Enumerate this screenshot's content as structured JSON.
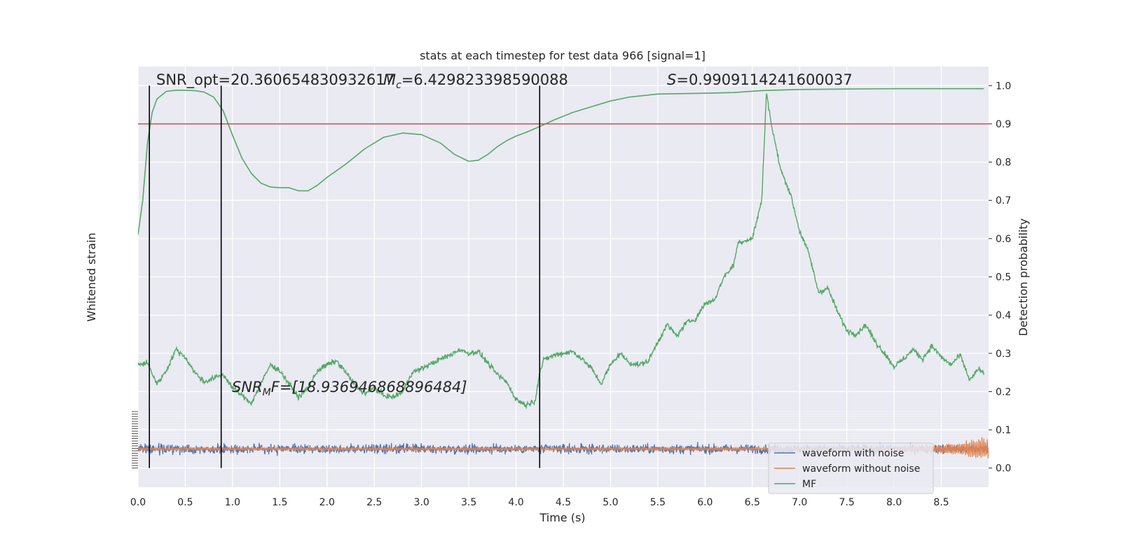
{
  "chart_data": {
    "type": "line",
    "title": "stats at each timestep for test data 966 [signal=1]",
    "xlabel": "Time (s)",
    "ylabel_left": "Whitened strain",
    "ylabel_right": "Detection probability",
    "xlim": [
      0.0,
      9.0
    ],
    "ylim_right": [
      -0.05,
      1.05
    ],
    "x_ticks": [
      "0.0",
      "0.5",
      "1.0",
      "1.5",
      "2.0",
      "2.5",
      "3.0",
      "3.5",
      "4.0",
      "4.5",
      "5.0",
      "5.5",
      "6.0",
      "6.5",
      "7.0",
      "7.5",
      "8.0",
      "8.5"
    ],
    "y_ticks_right": [
      "0.0",
      "0.1",
      "0.2",
      "0.3",
      "0.4",
      "0.5",
      "0.6",
      "0.7",
      "0.8",
      "0.9",
      "1.0"
    ],
    "threshold": 0.9,
    "vertical_lines": [
      0.12,
      0.88,
      4.25
    ],
    "annotations": {
      "snr_opt": "SNR_opt=20.360654830932617",
      "mc": "M",
      "mc_sub": "c",
      "mc_value": "=6.429823398590088",
      "s": "S",
      "s_value": "=0.9909114241600037",
      "snr_mf": "SNR",
      "snr_mf_sub": "M",
      "snr_mf_value": "F=[18.936946868896484]"
    },
    "legend": [
      "waveform with noise",
      "waveform without noise",
      "MF"
    ],
    "colors": {
      "noise": "#4c72b0",
      "clean": "#dd8452",
      "mf": "#55a868",
      "threshold": "#c44e52",
      "vline": "#000000",
      "plot_bg": "#eaeaf2",
      "grid": "#ffffff"
    },
    "series": [
      {
        "name": "Detection probability",
        "points": [
          [
            0.0,
            0.61
          ],
          [
            0.05,
            0.7
          ],
          [
            0.1,
            0.85
          ],
          [
            0.15,
            0.93
          ],
          [
            0.2,
            0.965
          ],
          [
            0.3,
            0.985
          ],
          [
            0.4,
            0.988
          ],
          [
            0.5,
            0.988
          ],
          [
            0.6,
            0.987
          ],
          [
            0.7,
            0.983
          ],
          [
            0.8,
            0.97
          ],
          [
            0.9,
            0.935
          ],
          [
            1.0,
            0.87
          ],
          [
            1.1,
            0.81
          ],
          [
            1.2,
            0.77
          ],
          [
            1.3,
            0.745
          ],
          [
            1.4,
            0.735
          ],
          [
            1.5,
            0.733
          ],
          [
            1.6,
            0.733
          ],
          [
            1.7,
            0.725
          ],
          [
            1.8,
            0.725
          ],
          [
            1.9,
            0.74
          ],
          [
            2.0,
            0.76
          ],
          [
            2.2,
            0.795
          ],
          [
            2.4,
            0.835
          ],
          [
            2.6,
            0.865
          ],
          [
            2.8,
            0.876
          ],
          [
            3.0,
            0.872
          ],
          [
            3.2,
            0.85
          ],
          [
            3.35,
            0.82
          ],
          [
            3.5,
            0.802
          ],
          [
            3.6,
            0.805
          ],
          [
            3.7,
            0.82
          ],
          [
            3.8,
            0.84
          ],
          [
            3.9,
            0.856
          ],
          [
            4.0,
            0.868
          ],
          [
            4.1,
            0.877
          ],
          [
            4.25,
            0.893
          ],
          [
            4.4,
            0.91
          ],
          [
            4.6,
            0.93
          ],
          [
            4.8,
            0.945
          ],
          [
            5.0,
            0.96
          ],
          [
            5.2,
            0.97
          ],
          [
            5.5,
            0.978
          ],
          [
            6.0,
            0.98
          ],
          [
            6.3,
            0.982
          ],
          [
            6.6,
            0.987
          ],
          [
            7.0,
            0.99
          ],
          [
            7.5,
            0.991
          ],
          [
            8.0,
            0.992
          ],
          [
            8.5,
            0.992
          ],
          [
            8.95,
            0.992
          ]
        ]
      },
      {
        "name": "MF",
        "points": [
          [
            0.0,
            0.27
          ],
          [
            0.1,
            0.275
          ],
          [
            0.2,
            0.22
          ],
          [
            0.3,
            0.255
          ],
          [
            0.4,
            0.31
          ],
          [
            0.5,
            0.29
          ],
          [
            0.6,
            0.25
          ],
          [
            0.7,
            0.225
          ],
          [
            0.8,
            0.235
          ],
          [
            0.9,
            0.245
          ],
          [
            1.0,
            0.21
          ],
          [
            1.1,
            0.19
          ],
          [
            1.2,
            0.17
          ],
          [
            1.3,
            0.22
          ],
          [
            1.4,
            0.27
          ],
          [
            1.5,
            0.255
          ],
          [
            1.6,
            0.22
          ],
          [
            1.7,
            0.185
          ],
          [
            1.8,
            0.21
          ],
          [
            1.9,
            0.255
          ],
          [
            2.0,
            0.27
          ],
          [
            2.1,
            0.28
          ],
          [
            2.2,
            0.25
          ],
          [
            2.3,
            0.215
          ],
          [
            2.4,
            0.195
          ],
          [
            2.5,
            0.21
          ],
          [
            2.6,
            0.19
          ],
          [
            2.7,
            0.185
          ],
          [
            2.8,
            0.2
          ],
          [
            2.9,
            0.25
          ],
          [
            3.0,
            0.26
          ],
          [
            3.2,
            0.285
          ],
          [
            3.3,
            0.295
          ],
          [
            3.4,
            0.31
          ],
          [
            3.5,
            0.3
          ],
          [
            3.6,
            0.305
          ],
          [
            3.7,
            0.275
          ],
          [
            3.8,
            0.245
          ],
          [
            3.9,
            0.225
          ],
          [
            4.0,
            0.18
          ],
          [
            4.1,
            0.165
          ],
          [
            4.2,
            0.175
          ],
          [
            4.25,
            0.25
          ],
          [
            4.3,
            0.285
          ],
          [
            4.4,
            0.295
          ],
          [
            4.5,
            0.3
          ],
          [
            4.6,
            0.305
          ],
          [
            4.7,
            0.285
          ],
          [
            4.8,
            0.26
          ],
          [
            4.9,
            0.22
          ],
          [
            5.0,
            0.27
          ],
          [
            5.1,
            0.3
          ],
          [
            5.2,
            0.275
          ],
          [
            5.3,
            0.27
          ],
          [
            5.4,
            0.28
          ],
          [
            5.5,
            0.33
          ],
          [
            5.6,
            0.375
          ],
          [
            5.7,
            0.345
          ],
          [
            5.8,
            0.38
          ],
          [
            5.9,
            0.39
          ],
          [
            6.0,
            0.43
          ],
          [
            6.1,
            0.44
          ],
          [
            6.2,
            0.5
          ],
          [
            6.3,
            0.53
          ],
          [
            6.35,
            0.59
          ],
          [
            6.5,
            0.6
          ],
          [
            6.6,
            0.7
          ],
          [
            6.65,
            0.985
          ],
          [
            6.7,
            0.9
          ],
          [
            6.8,
            0.78
          ],
          [
            6.9,
            0.72
          ],
          [
            7.0,
            0.62
          ],
          [
            7.1,
            0.56
          ],
          [
            7.2,
            0.46
          ],
          [
            7.3,
            0.47
          ],
          [
            7.4,
            0.41
          ],
          [
            7.5,
            0.36
          ],
          [
            7.6,
            0.35
          ],
          [
            7.7,
            0.375
          ],
          [
            7.8,
            0.33
          ],
          [
            7.9,
            0.3
          ],
          [
            8.0,
            0.265
          ],
          [
            8.1,
            0.285
          ],
          [
            8.2,
            0.31
          ],
          [
            8.3,
            0.285
          ],
          [
            8.4,
            0.32
          ],
          [
            8.5,
            0.29
          ],
          [
            8.6,
            0.27
          ],
          [
            8.7,
            0.295
          ],
          [
            8.8,
            0.23
          ],
          [
            8.9,
            0.26
          ],
          [
            8.95,
            0.245
          ]
        ]
      },
      {
        "name": "waveform with noise",
        "center": 0.05,
        "amplitude": 0.013
      },
      {
        "name": "waveform without noise",
        "center": 0.05,
        "amplitude": 0.004,
        "chirp_peak_x": 8.9
      }
    ]
  }
}
